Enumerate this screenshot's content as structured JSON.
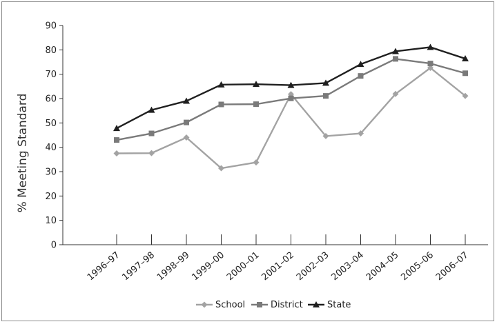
{
  "chart_data": {
    "type": "line",
    "ylabel": "% Meeting Standard",
    "xlabel": "",
    "ylim": [
      0,
      90
    ],
    "yticks": [
      0,
      10,
      20,
      30,
      40,
      50,
      60,
      70,
      80,
      90
    ],
    "categories": [
      "1996–97",
      "1997–98",
      "1998–99",
      "1999–00",
      "2000–01",
      "2001–02",
      "2002–03",
      "2003–04",
      "2004–05",
      "2005–06",
      "2006–07"
    ],
    "series": [
      {
        "name": "School",
        "marker": "diamond",
        "color": "#a3a3a3",
        "values": [
          37.5,
          37.6,
          44,
          31.4,
          33.8,
          61.8,
          44.6,
          45.7,
          61.9,
          72.6,
          61.1
        ]
      },
      {
        "name": "District",
        "marker": "square",
        "color": "#7a7a7a",
        "values": [
          43,
          45.7,
          50.2,
          57.6,
          57.7,
          60.1,
          61.1,
          69.3,
          76.3,
          74.4,
          70.4
        ]
      },
      {
        "name": "State",
        "marker": "triangle",
        "color": "#1f1f1f",
        "values": [
          47.8,
          55.3,
          59,
          65.7,
          65.9,
          65.5,
          66.4,
          74.1,
          79.4,
          81.1,
          76.4
        ]
      }
    ],
    "grid": false,
    "legend": "bottom"
  }
}
